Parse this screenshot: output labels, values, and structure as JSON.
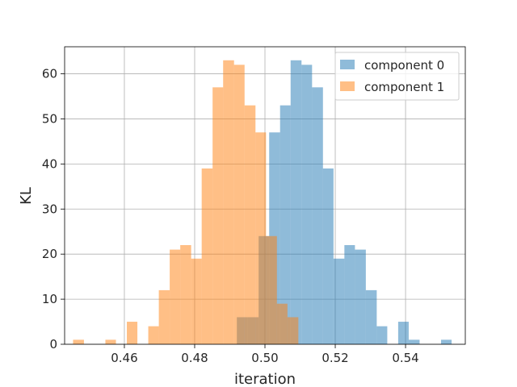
{
  "chart_data": {
    "type": "histogram",
    "xlabel": "iteration",
    "ylabel": "KL",
    "xlim": [
      0.443,
      0.557
    ],
    "ylim": [
      0,
      66
    ],
    "xticks": [
      0.46,
      0.48,
      0.5,
      0.52,
      0.54
    ],
    "xtick_labels": [
      "0.46",
      "0.48",
      "0.50",
      "0.52",
      "0.54"
    ],
    "yticks": [
      0,
      10,
      20,
      30,
      40,
      50,
      60
    ],
    "ytick_labels": [
      "0",
      "10",
      "20",
      "30",
      "40",
      "50",
      "60"
    ],
    "grid": true,
    "legend_position": "top-right",
    "series": [
      {
        "name": "component 0",
        "color": "#1f77b4",
        "opacity": 0.5,
        "bins": [
          {
            "x0": 0.492,
            "x1": 0.4951,
            "count": 6
          },
          {
            "x0": 0.4951,
            "x1": 0.4982,
            "count": 6
          },
          {
            "x0": 0.4982,
            "x1": 0.5012,
            "count": 24
          },
          {
            "x0": 0.5012,
            "x1": 0.5043,
            "count": 47
          },
          {
            "x0": 0.5043,
            "x1": 0.5073,
            "count": 53
          },
          {
            "x0": 0.5073,
            "x1": 0.5104,
            "count": 63
          },
          {
            "x0": 0.5104,
            "x1": 0.5134,
            "count": 62
          },
          {
            "x0": 0.5134,
            "x1": 0.5165,
            "count": 57
          },
          {
            "x0": 0.5165,
            "x1": 0.5195,
            "count": 39
          },
          {
            "x0": 0.5195,
            "x1": 0.5226,
            "count": 19
          },
          {
            "x0": 0.5226,
            "x1": 0.5256,
            "count": 22
          },
          {
            "x0": 0.5256,
            "x1": 0.5287,
            "count": 21
          },
          {
            "x0": 0.5287,
            "x1": 0.5318,
            "count": 12
          },
          {
            "x0": 0.5318,
            "x1": 0.5348,
            "count": 4
          },
          {
            "x0": 0.5348,
            "x1": 0.5379,
            "count": 0
          },
          {
            "x0": 0.5379,
            "x1": 0.5409,
            "count": 5
          },
          {
            "x0": 0.5409,
            "x1": 0.544,
            "count": 1
          },
          {
            "x0": 0.544,
            "x1": 0.5501,
            "count": 0
          },
          {
            "x0": 0.5501,
            "x1": 0.5531,
            "count": 1
          }
        ]
      },
      {
        "name": "component 1",
        "color": "#ff7f0e",
        "opacity": 0.5,
        "bins": [
          {
            "x0": 0.4454,
            "x1": 0.4485,
            "count": 1
          },
          {
            "x0": 0.4485,
            "x1": 0.4546,
            "count": 0
          },
          {
            "x0": 0.4546,
            "x1": 0.4576,
            "count": 1
          },
          {
            "x0": 0.4576,
            "x1": 0.4607,
            "count": 0
          },
          {
            "x0": 0.4607,
            "x1": 0.4637,
            "count": 5
          },
          {
            "x0": 0.4637,
            "x1": 0.4668,
            "count": 0
          },
          {
            "x0": 0.4668,
            "x1": 0.4698,
            "count": 4
          },
          {
            "x0": 0.4698,
            "x1": 0.4729,
            "count": 12
          },
          {
            "x0": 0.4729,
            "x1": 0.4759,
            "count": 21
          },
          {
            "x0": 0.4759,
            "x1": 0.479,
            "count": 22
          },
          {
            "x0": 0.479,
            "x1": 0.482,
            "count": 19
          },
          {
            "x0": 0.482,
            "x1": 0.4851,
            "count": 39
          },
          {
            "x0": 0.4851,
            "x1": 0.4881,
            "count": 57
          },
          {
            "x0": 0.4881,
            "x1": 0.4912,
            "count": 63
          },
          {
            "x0": 0.4912,
            "x1": 0.4942,
            "count": 62
          },
          {
            "x0": 0.4942,
            "x1": 0.4973,
            "count": 53
          },
          {
            "x0": 0.4973,
            "x1": 0.5003,
            "count": 47
          },
          {
            "x0": 0.5003,
            "x1": 0.5034,
            "count": 24
          },
          {
            "x0": 0.5034,
            "x1": 0.5064,
            "count": 9
          },
          {
            "x0": 0.5064,
            "x1": 0.5095,
            "count": 6
          }
        ]
      }
    ]
  }
}
